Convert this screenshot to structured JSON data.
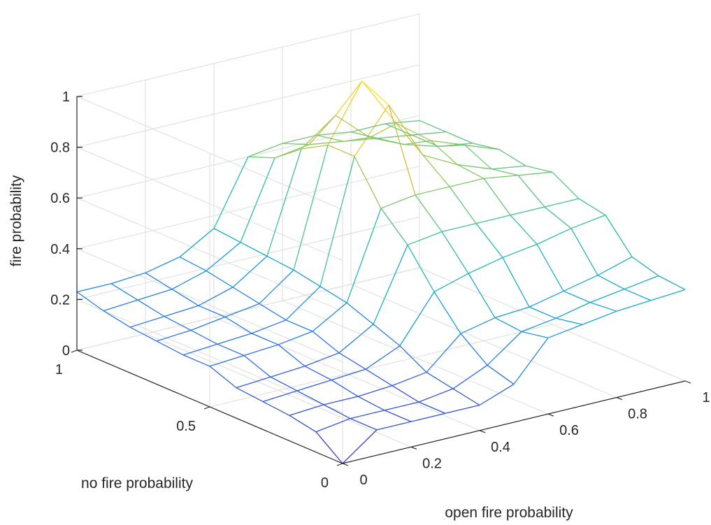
{
  "chart_data": {
    "type": "surface",
    "title": "",
    "xlabel": "open fire probability",
    "ylabel": "no fire probability",
    "zlabel": "fire probability",
    "xlim": [
      0,
      1
    ],
    "ylim": [
      0,
      1
    ],
    "zlim": [
      0,
      1
    ],
    "x_ticks": [
      0,
      0.2,
      0.4,
      0.6,
      0.8,
      1
    ],
    "y_ticks": [
      0,
      0.5,
      1
    ],
    "z_ticks": [
      0,
      0.2,
      0.4,
      0.6,
      0.8,
      1
    ],
    "x_tick_labels": [
      "0",
      "0.2",
      "0.4",
      "0.6",
      "0.8",
      "1"
    ],
    "y_tick_labels": [
      "0",
      "0.5",
      "1"
    ],
    "z_tick_labels": [
      "0",
      "0.2",
      "0.4",
      "0.6",
      "0.8",
      "1"
    ],
    "grid": true,
    "colormap": "parula",
    "colormap_colors": [
      "#3e26a8",
      "#2d71e5",
      "#16a7d2",
      "#2fbf9f",
      "#8ec85c",
      "#e3bb3b",
      "#f9fb0e"
    ],
    "x": [
      0,
      0.1,
      0.2,
      0.3,
      0.4,
      0.5,
      0.6,
      0.7,
      0.8,
      0.9,
      1.0
    ],
    "y": [
      0,
      0.1,
      0.2,
      0.3,
      0.4,
      0.5,
      0.6,
      0.7,
      0.8,
      0.9,
      1.0
    ],
    "z": [
      [
        0.0,
        0.1,
        0.1,
        0.1,
        0.1,
        0.15,
        0.3,
        0.32,
        0.34,
        0.35,
        0.36
      ],
      [
        0.08,
        0.1,
        0.1,
        0.1,
        0.12,
        0.18,
        0.28,
        0.3,
        0.33,
        0.35,
        0.37
      ],
      [
        0.1,
        0.11,
        0.11,
        0.12,
        0.14,
        0.26,
        0.29,
        0.3,
        0.33,
        0.36,
        0.4
      ],
      [
        0.11,
        0.12,
        0.13,
        0.14,
        0.2,
        0.38,
        0.42,
        0.45,
        0.47,
        0.5,
        0.52
      ],
      [
        0.12,
        0.13,
        0.14,
        0.16,
        0.24,
        0.52,
        0.54,
        0.54,
        0.54,
        0.54,
        0.54
      ],
      [
        0.16,
        0.17,
        0.18,
        0.2,
        0.28,
        0.62,
        0.64,
        0.64,
        0.64,
        0.62,
        0.6
      ],
      [
        0.16,
        0.17,
        0.18,
        0.2,
        0.3,
        0.78,
        0.95,
        0.72,
        0.65,
        0.6,
        0.58
      ],
      [
        0.17,
        0.18,
        0.2,
        0.22,
        0.32,
        0.78,
        1.0,
        0.8,
        0.7,
        0.65,
        0.6
      ],
      [
        0.18,
        0.19,
        0.2,
        0.24,
        0.33,
        0.72,
        0.82,
        0.7,
        0.64,
        0.6,
        0.58
      ],
      [
        0.2,
        0.21,
        0.22,
        0.26,
        0.34,
        0.64,
        0.66,
        0.64,
        0.62,
        0.6,
        0.58
      ],
      [
        0.23,
        0.23,
        0.24,
        0.27,
        0.35,
        0.6,
        0.62,
        0.62,
        0.6,
        0.6,
        0.58
      ]
    ]
  }
}
